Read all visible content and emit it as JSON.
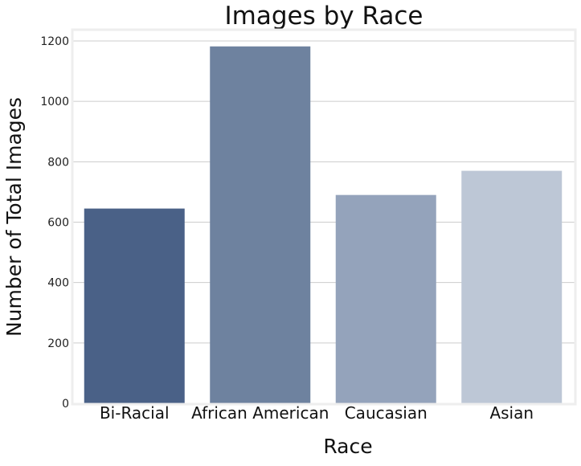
{
  "chart_data": {
    "type": "bar",
    "title": "Images by Race",
    "xlabel": "Race",
    "ylabel": "Number of Total Images",
    "categories": [
      "Bi-Racial",
      "African American",
      "Caucasian",
      "Asian"
    ],
    "values": [
      645,
      1182,
      690,
      770
    ],
    "colors": [
      "#4a6187",
      "#6e829f",
      "#94a3bb",
      "#bdc7d6"
    ],
    "ylim": [
      0,
      1240
    ],
    "yticks": [
      0,
      200,
      400,
      600,
      800,
      1000,
      1200
    ],
    "grid": "horizontal"
  }
}
